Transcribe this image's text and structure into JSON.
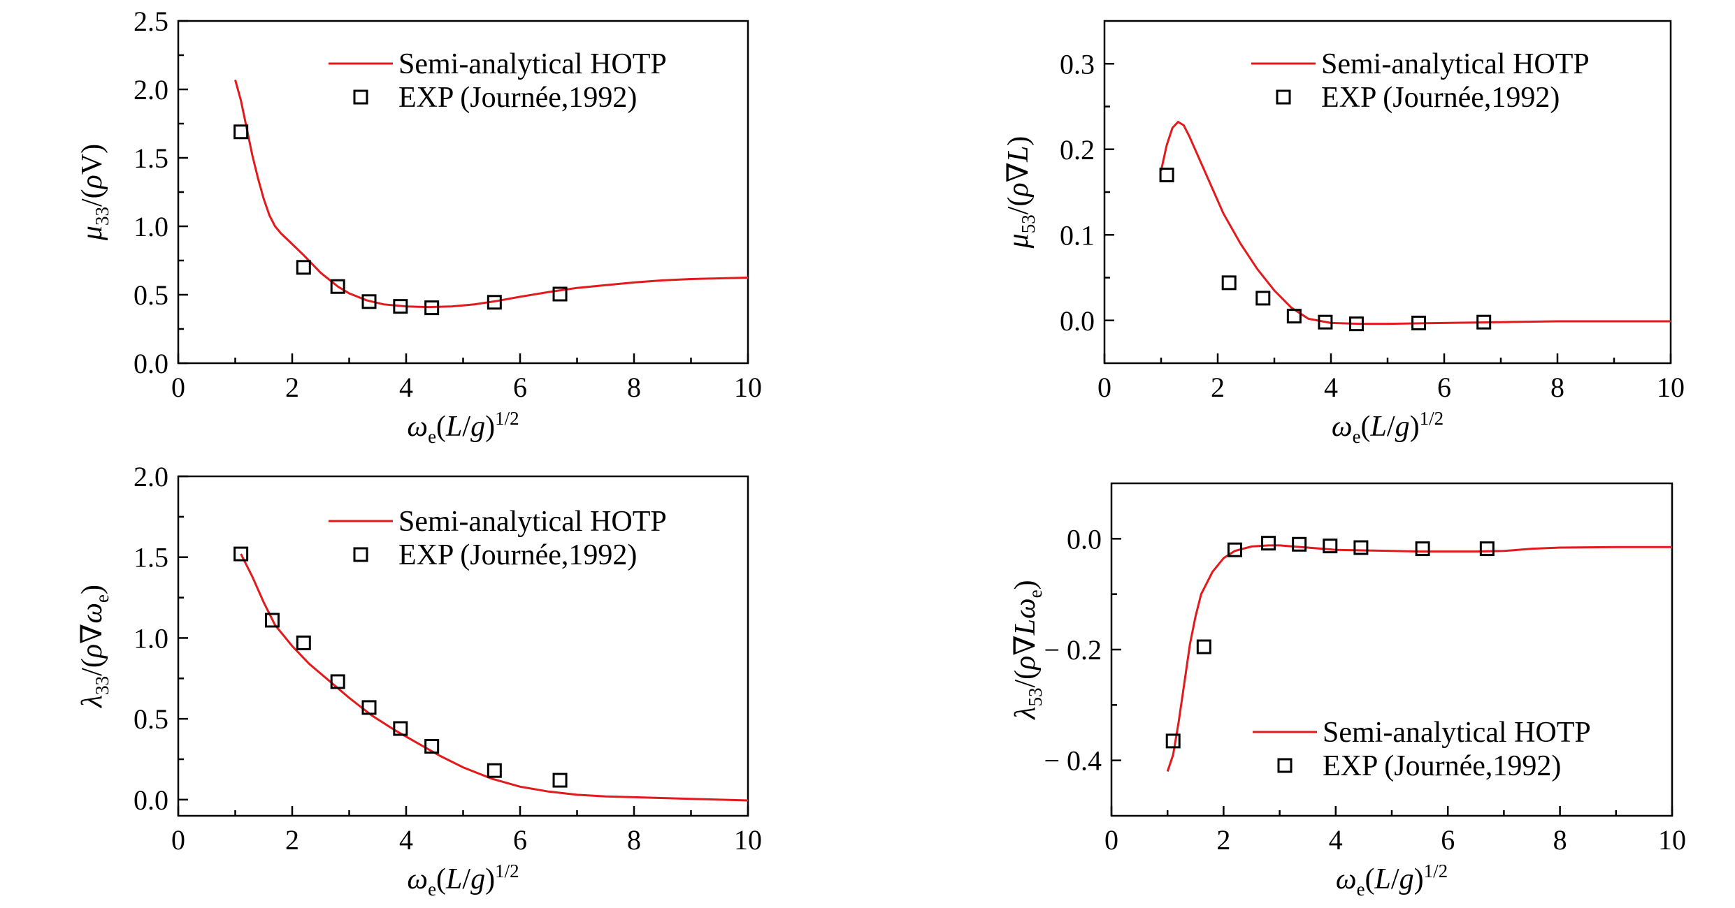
{
  "colors": {
    "curve": "#e31a1c",
    "marker": "#000000"
  },
  "chart_data": [
    {
      "type": "line",
      "xlim": [
        0,
        10
      ],
      "ylim": [
        0,
        2.5
      ],
      "x_ticks": [
        "0",
        "2",
        "4",
        "6",
        "8",
        "10"
      ],
      "y_ticks": [
        "0.0",
        "0.5",
        "1.0",
        "1.5",
        "2.0",
        "2.5"
      ],
      "xlabel": {
        "symbol": "ω",
        "sub": "e",
        "body": "(L/g)",
        "sup": "1/2"
      },
      "ylabel": {
        "symbol": "μ",
        "sub": "33",
        "body": "/(ρV)"
      },
      "legend": {
        "position": "top-right",
        "line_label": "Semi-analytical HOTP",
        "marker_label": "EXP (Journée,1992)"
      },
      "series": [
        {
          "name": "Semi-analytical HOTP",
          "kind": "line",
          "x": [
            1.0,
            1.1,
            1.2,
            1.3,
            1.4,
            1.5,
            1.6,
            1.7,
            1.8,
            2.0,
            2.2,
            2.5,
            2.8,
            3.0,
            3.3,
            3.6,
            4.0,
            4.4,
            4.8,
            5.2,
            5.6,
            6.0,
            6.5,
            7.0,
            7.5,
            8.0,
            8.5,
            9.0,
            9.5,
            10.0
          ],
          "y": [
            2.07,
            1.92,
            1.72,
            1.52,
            1.35,
            1.2,
            1.08,
            1.0,
            0.95,
            0.87,
            0.79,
            0.66,
            0.56,
            0.51,
            0.46,
            0.43,
            0.415,
            0.41,
            0.415,
            0.43,
            0.455,
            0.485,
            0.52,
            0.55,
            0.57,
            0.59,
            0.605,
            0.615,
            0.62,
            0.625
          ]
        },
        {
          "name": "EXP (Journée,1992)",
          "kind": "scatter",
          "x": [
            1.1,
            2.2,
            2.8,
            3.35,
            3.9,
            4.45,
            5.55,
            6.7
          ],
          "y": [
            1.69,
            0.7,
            0.56,
            0.45,
            0.415,
            0.405,
            0.445,
            0.505
          ]
        }
      ]
    },
    {
      "type": "line",
      "xlim": [
        0,
        10
      ],
      "ylim": [
        -0.05,
        0.35
      ],
      "x_ticks": [
        "0",
        "2",
        "4",
        "6",
        "8",
        "10"
      ],
      "y_ticks": [
        "0.0",
        "0.1",
        "0.2",
        "0.3"
      ],
      "xlabel": {
        "symbol": "ω",
        "sub": "e",
        "body": "(L/g)",
        "sup": "1/2"
      },
      "ylabel": {
        "symbol": "μ",
        "sub": "53",
        "body": "/(ρ∇L)"
      },
      "legend": {
        "position": "top-right",
        "line_label": "Semi-analytical HOTP",
        "marker_label": "EXP (Journée,1992)"
      },
      "series": [
        {
          "name": "Semi-analytical HOTP",
          "kind": "line",
          "x": [
            1.0,
            1.1,
            1.2,
            1.3,
            1.4,
            1.5,
            1.7,
            1.9,
            2.1,
            2.4,
            2.7,
            3.0,
            3.3,
            3.6,
            4.0,
            4.5,
            5.0,
            6.0,
            7.0,
            8.0,
            9.0,
            10.0
          ],
          "y": [
            0.175,
            0.205,
            0.225,
            0.232,
            0.228,
            0.215,
            0.185,
            0.155,
            0.125,
            0.09,
            0.06,
            0.035,
            0.015,
            0.002,
            -0.003,
            -0.004,
            -0.004,
            -0.003,
            -0.002,
            -0.001,
            -0.001,
            -0.001
          ]
        },
        {
          "name": "EXP (Journée,1992)",
          "kind": "scatter",
          "x": [
            1.1,
            2.2,
            2.8,
            3.35,
            3.9,
            4.45,
            5.55,
            6.7
          ],
          "y": [
            0.17,
            0.044,
            0.026,
            0.005,
            -0.002,
            -0.004,
            -0.003,
            -0.002
          ]
        }
      ]
    },
    {
      "type": "line",
      "xlim": [
        0,
        10
      ],
      "ylim": [
        -0.1,
        2.0
      ],
      "x_ticks": [
        "0",
        "2",
        "4",
        "6",
        "8",
        "10"
      ],
      "y_ticks": [
        "0.0",
        "0.5",
        "1.0",
        "1.5",
        "2.0"
      ],
      "xlabel": {
        "symbol": "ω",
        "sub": "e",
        "body": "(L/g)",
        "sup": "1/2"
      },
      "ylabel": {
        "symbol": "λ",
        "sub": "33",
        "body": "/(ρ∇ω",
        "tail_sub": "e",
        "tail": ")"
      },
      "legend": {
        "position": "top-right",
        "line_label": "Semi-analytical HOTP",
        "marker_label": "EXP (Journée,1992)"
      },
      "series": [
        {
          "name": "Semi-analytical HOTP",
          "kind": "line",
          "x": [
            1.1,
            1.3,
            1.5,
            1.7,
            2.0,
            2.3,
            2.6,
            3.0,
            3.4,
            3.8,
            4.2,
            4.6,
            5.0,
            5.5,
            6.0,
            6.5,
            7.0,
            7.5,
            8.0,
            9.0,
            10.0
          ],
          "y": [
            1.52,
            1.38,
            1.22,
            1.08,
            0.95,
            0.84,
            0.75,
            0.63,
            0.52,
            0.43,
            0.35,
            0.27,
            0.2,
            0.13,
            0.08,
            0.05,
            0.03,
            0.02,
            0.015,
            0.005,
            -0.005
          ]
        },
        {
          "name": "EXP (Journée,1992)",
          "kind": "scatter",
          "x": [
            1.1,
            1.65,
            2.2,
            2.8,
            3.35,
            3.9,
            4.45,
            5.55,
            6.7
          ],
          "y": [
            1.52,
            1.11,
            0.97,
            0.73,
            0.57,
            0.44,
            0.33,
            0.18,
            0.12
          ]
        }
      ]
    },
    {
      "type": "line",
      "xlim": [
        0,
        10
      ],
      "ylim": [
        -0.5,
        0.1
      ],
      "x_ticks": [
        "0",
        "2",
        "4",
        "6",
        "8",
        "10"
      ],
      "y_ticks": [
        "0.0",
        "− 0.2",
        "− 0.4"
      ],
      "y_tick_values": [
        0.0,
        -0.2,
        -0.4
      ],
      "xlabel": {
        "symbol": "ω",
        "sub": "e",
        "body": "(L/g)",
        "sup": "1/2"
      },
      "ylabel": {
        "symbol": "λ",
        "sub": "53",
        "body": "/(ρ∇Lω",
        "tail_sub": "e",
        "tail": ")"
      },
      "legend": {
        "position": "bottom-right",
        "line_label": "Semi-analytical HOTP",
        "marker_label": "EXP (Journée,1992)"
      },
      "series": [
        {
          "name": "Semi-analytical HOTP",
          "kind": "line",
          "x": [
            1.0,
            1.1,
            1.2,
            1.3,
            1.4,
            1.5,
            1.6,
            1.8,
            2.0,
            2.2,
            2.5,
            2.8,
            3.0,
            3.5,
            4.0,
            4.5,
            5.0,
            5.5,
            6.0,
            6.5,
            7.0,
            7.5,
            8.0,
            9.0,
            10.0
          ],
          "y": [
            -0.42,
            -0.39,
            -0.33,
            -0.26,
            -0.19,
            -0.14,
            -0.1,
            -0.06,
            -0.035,
            -0.022,
            -0.014,
            -0.012,
            -0.012,
            -0.016,
            -0.02,
            -0.021,
            -0.022,
            -0.023,
            -0.023,
            -0.023,
            -0.022,
            -0.018,
            -0.016,
            -0.015,
            -0.015
          ]
        },
        {
          "name": "EXP (Journée,1992)",
          "kind": "scatter",
          "x": [
            1.1,
            1.65,
            2.2,
            2.8,
            3.35,
            3.9,
            4.45,
            5.55,
            6.7
          ],
          "y": [
            -0.365,
            -0.195,
            -0.02,
            -0.008,
            -0.01,
            -0.013,
            -0.016,
            -0.018,
            -0.018
          ]
        }
      ]
    }
  ]
}
